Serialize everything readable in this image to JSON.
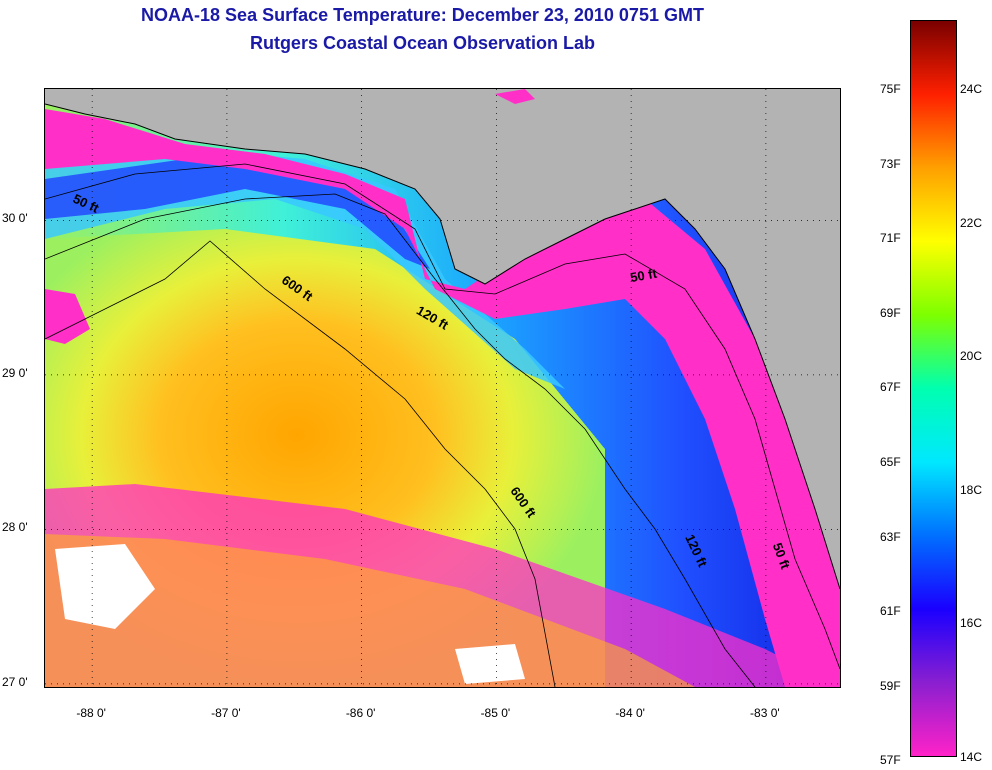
{
  "title": {
    "line1": "NOAA-18 Sea Surface Temperature:  December 23, 2010 0751 GMT",
    "line2": "Rutgers Coastal Ocean Observation Lab"
  },
  "map": {
    "lon_range": [
      -88.35,
      -82.45
    ],
    "lat_range": [
      26.98,
      30.85
    ],
    "lat_labels": [
      {
        "value": 30,
        "label": "30 0'"
      },
      {
        "value": 29,
        "label": "29 0'"
      },
      {
        "value": 28,
        "label": "28 0'"
      },
      {
        "value": 27,
        "label": "27 0'"
      }
    ],
    "lon_labels": [
      {
        "value": -88,
        "label": "-88 0'"
      },
      {
        "value": -87,
        "label": "-87 0'"
      },
      {
        "value": -86,
        "label": "-86 0'"
      },
      {
        "value": -85,
        "label": "-85 0'"
      },
      {
        "value": -84,
        "label": "-84 0'"
      },
      {
        "value": -83,
        "label": "-83 0'"
      }
    ],
    "depth_labels": [
      {
        "text": "50 ft",
        "lon": -88.15,
        "lat": 30.12,
        "rot": 25
      },
      {
        "text": "600 ft",
        "lon": -86.6,
        "lat": 29.6,
        "rot": 35
      },
      {
        "text": "120 ft",
        "lon": -85.6,
        "lat": 29.4,
        "rot": 30
      },
      {
        "text": "50 ft",
        "lon": -84.0,
        "lat": 29.6,
        "rot": -10
      },
      {
        "text": "600 ft",
        "lon": -84.9,
        "lat": 28.25,
        "rot": 55
      },
      {
        "text": "120 ft",
        "lon": -83.6,
        "lat": 27.95,
        "rot": 65
      },
      {
        "text": "50 ft",
        "lon": -82.95,
        "lat": 27.9,
        "rot": 70
      }
    ],
    "land_color": "#b3b3b3"
  },
  "colorbar": {
    "f_labels": [
      "75F",
      "73F",
      "71F",
      "69F",
      "67F",
      "65F",
      "63F",
      "61F",
      "59F",
      "57F"
    ],
    "c_labels": [
      "24C",
      "22C",
      "20C",
      "18C",
      "16C",
      "14C"
    ],
    "gradient": [
      "#ff22c8",
      "#8a1fd0",
      "#1a00ff",
      "#0070ff",
      "#00e8ff",
      "#00ffb0",
      "#7dff00",
      "#ffff00",
      "#ffa000",
      "#ff2000",
      "#7a0000"
    ]
  }
}
